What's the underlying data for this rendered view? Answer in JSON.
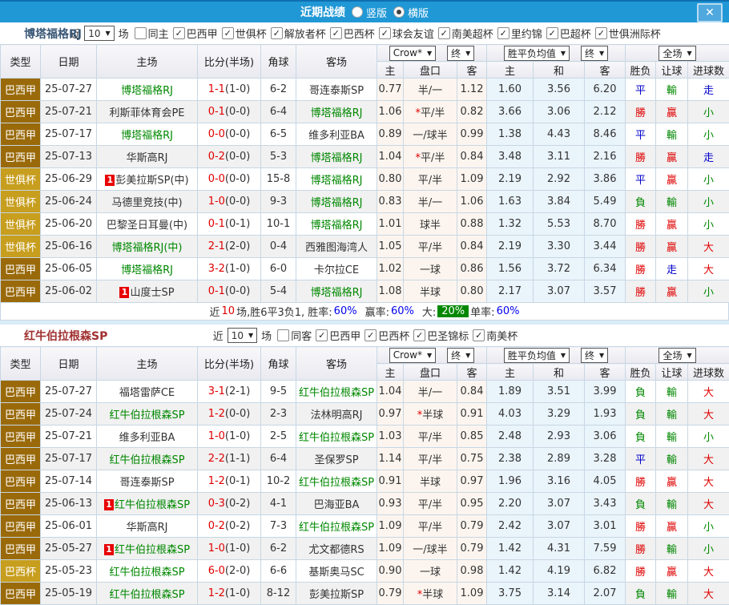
{
  "icons": {
    "close": "✕",
    "check": "✓",
    "arrow_down": "▼"
  },
  "colors": {
    "titlebar_blue": "#2098D6",
    "league_dark_gold": "#9A6A0A",
    "league_light_gold": "#C79E1E",
    "win_red": "#E00000",
    "lose_green": "#008800",
    "draw_blue": "#0000CC",
    "percent_blue": "#0000EE",
    "handicap_bg": "#FCF5EF",
    "avg_bg": "#EAF4FB"
  },
  "titlebar": {
    "title": "近期战绩",
    "vertical_label": "竖版",
    "horizontal_label": "横版",
    "selected": "横版"
  },
  "header": {
    "type": "类型",
    "date": "日期",
    "home": "主场",
    "score": "比分(半场)",
    "corner": "角球",
    "away": "客场",
    "odds_source": "Crow*",
    "final": "终",
    "avg_label": "胜平负均值",
    "scope": "全场",
    "sub_home": "主",
    "sub_handicap": "盘口",
    "sub_away": "客",
    "sub_avg_home": "主",
    "sub_avg_draw": "和",
    "sub_avg_away": "客",
    "sub_wdl": "胜负",
    "sub_let": "让球",
    "sub_goals": "进球数"
  },
  "sections": [
    {
      "team": "博塔福格RJ",
      "filters": {
        "near_label": "近",
        "near_value": "10",
        "games_label": "场",
        "same_label": "同主",
        "same_checked": false,
        "leagues": [
          "巴西甲",
          "世俱杯",
          "解放者杯",
          "巴西杯",
          "球会友谊",
          "南美超杯",
          "里约锦",
          "巴超杯",
          "世俱洲际杯"
        ]
      },
      "rows": [
        {
          "league": "巴西甲",
          "shade": "dark",
          "date": "25-07-27",
          "home": "博塔福格RJ",
          "home_green": true,
          "home_badge": "",
          "score": "1-1",
          "half": "(1-0)",
          "corners": "6-2",
          "away": "哥连泰斯SP",
          "away_green": false,
          "away_badge": "",
          "hc_home": "0.77",
          "hc_line": "半/一",
          "hc_star": false,
          "hc_away": "1.12",
          "avg_home": "1.60",
          "avg_draw": "3.56",
          "avg_away": "6.20",
          "res_wdl": [
            "平",
            "b"
          ],
          "res_let": [
            "輸",
            "g"
          ],
          "res_goal": [
            "走",
            "b"
          ]
        },
        {
          "league": "巴西甲",
          "shade": "dark",
          "date": "25-07-21",
          "home": "利斯菲体育会PE",
          "home_green": false,
          "home_badge": "",
          "score": "0-1",
          "half": "(0-0)",
          "corners": "6-4",
          "away": "博塔福格RJ",
          "away_green": true,
          "away_badge": "",
          "hc_home": "1.06",
          "hc_line": "平/半",
          "hc_star": true,
          "hc_away": "0.82",
          "avg_home": "3.66",
          "avg_draw": "3.06",
          "avg_away": "2.12",
          "res_wdl": [
            "勝",
            "r"
          ],
          "res_let": [
            "贏",
            "r"
          ],
          "res_goal": [
            "小",
            "g"
          ]
        },
        {
          "league": "巴西甲",
          "shade": "dark",
          "date": "25-07-17",
          "home": "博塔福格RJ",
          "home_green": true,
          "home_badge": "",
          "score": "0-0",
          "half": "(0-0)",
          "corners": "6-5",
          "away": "维多利亚BA",
          "away_green": false,
          "away_badge": "",
          "hc_home": "0.89",
          "hc_line": "一/球半",
          "hc_star": false,
          "hc_away": "0.99",
          "avg_home": "1.38",
          "avg_draw": "4.43",
          "avg_away": "8.46",
          "res_wdl": [
            "平",
            "b"
          ],
          "res_let": [
            "輸",
            "g"
          ],
          "res_goal": [
            "小",
            "g"
          ]
        },
        {
          "league": "巴西甲",
          "shade": "dark",
          "date": "25-07-13",
          "home": "华斯高RJ",
          "home_green": false,
          "home_badge": "",
          "score": "0-2",
          "half": "(0-0)",
          "corners": "5-3",
          "away": "博塔福格RJ",
          "away_green": true,
          "away_badge": "",
          "hc_home": "1.04",
          "hc_line": "平/半",
          "hc_star": true,
          "hc_away": "0.84",
          "avg_home": "3.48",
          "avg_draw": "3.11",
          "avg_away": "2.16",
          "res_wdl": [
            "勝",
            "r"
          ],
          "res_let": [
            "贏",
            "r"
          ],
          "res_goal": [
            "走",
            "b"
          ]
        },
        {
          "league": "世俱杯",
          "shade": "light",
          "date": "25-06-29",
          "home": "彭美拉斯SP(中)",
          "home_green": false,
          "home_badge": "1",
          "score": "0-0",
          "half": "(0-0)",
          "corners": "15-8",
          "away": "博塔福格RJ",
          "away_green": true,
          "away_badge": "",
          "hc_home": "0.80",
          "hc_line": "平/半",
          "hc_star": false,
          "hc_away": "1.09",
          "avg_home": "2.19",
          "avg_draw": "2.92",
          "avg_away": "3.86",
          "res_wdl": [
            "平",
            "b"
          ],
          "res_let": [
            "贏",
            "r"
          ],
          "res_goal": [
            "小",
            "g"
          ]
        },
        {
          "league": "世俱杯",
          "shade": "light",
          "date": "25-06-24",
          "home": "马德里竞技(中)",
          "home_green": false,
          "home_badge": "",
          "score": "1-0",
          "half": "(0-0)",
          "corners": "9-3",
          "away": "博塔福格RJ",
          "away_green": true,
          "away_badge": "",
          "hc_home": "0.83",
          "hc_line": "半/一",
          "hc_star": false,
          "hc_away": "1.06",
          "avg_home": "1.63",
          "avg_draw": "3.84",
          "avg_away": "5.49",
          "res_wdl": [
            "負",
            "g"
          ],
          "res_let": [
            "輸",
            "g"
          ],
          "res_goal": [
            "小",
            "g"
          ]
        },
        {
          "league": "世俱杯",
          "shade": "light",
          "date": "25-06-20",
          "home": "巴黎圣日耳曼(中)",
          "home_green": false,
          "home_badge": "",
          "score": "0-1",
          "half": "(0-1)",
          "corners": "10-1",
          "away": "博塔福格RJ",
          "away_green": true,
          "away_badge": "",
          "hc_home": "1.01",
          "hc_line": "球半",
          "hc_star": false,
          "hc_away": "0.88",
          "avg_home": "1.32",
          "avg_draw": "5.53",
          "avg_away": "8.70",
          "res_wdl": [
            "勝",
            "r"
          ],
          "res_let": [
            "贏",
            "r"
          ],
          "res_goal": [
            "小",
            "g"
          ]
        },
        {
          "league": "世俱杯",
          "shade": "light",
          "date": "25-06-16",
          "home": "博塔福格RJ(中)",
          "home_green": true,
          "home_badge": "",
          "score": "2-1",
          "half": "(2-0)",
          "corners": "0-4",
          "away": "西雅图海湾人",
          "away_green": false,
          "away_badge": "",
          "hc_home": "1.05",
          "hc_line": "平/半",
          "hc_star": false,
          "hc_away": "0.84",
          "avg_home": "2.19",
          "avg_draw": "3.30",
          "avg_away": "3.44",
          "res_wdl": [
            "勝",
            "r"
          ],
          "res_let": [
            "贏",
            "r"
          ],
          "res_goal": [
            "大",
            "r"
          ]
        },
        {
          "league": "巴西甲",
          "shade": "dark",
          "date": "25-06-05",
          "home": "博塔福格RJ",
          "home_green": true,
          "home_badge": "",
          "score": "3-2",
          "half": "(1-0)",
          "corners": "6-0",
          "away": "卡尔拉CE",
          "away_green": false,
          "away_badge": "",
          "hc_home": "1.02",
          "hc_line": "一球",
          "hc_star": false,
          "hc_away": "0.86",
          "avg_home": "1.56",
          "avg_draw": "3.72",
          "avg_away": "6.34",
          "res_wdl": [
            "勝",
            "r"
          ],
          "res_let": [
            "走",
            "b"
          ],
          "res_goal": [
            "大",
            "r"
          ]
        },
        {
          "league": "巴西甲",
          "shade": "dark",
          "date": "25-06-02",
          "home": "山度士SP",
          "home_green": false,
          "home_badge": "1",
          "score": "0-1",
          "half": "(0-0)",
          "corners": "5-4",
          "away": "博塔福格RJ",
          "away_green": true,
          "away_badge": "",
          "hc_home": "1.08",
          "hc_line": "半球",
          "hc_star": false,
          "hc_away": "0.80",
          "avg_home": "2.17",
          "avg_draw": "3.07",
          "avg_away": "3.57",
          "res_wdl": [
            "勝",
            "r"
          ],
          "res_let": [
            "贏",
            "r"
          ],
          "res_goal": [
            "小",
            "g"
          ]
        }
      ],
      "summary": {
        "prefix": "近",
        "count": "10",
        "mid": "场,胜6平3负1, 胜率:",
        "win_rate": "60%",
        "odds_label": "赢率:",
        "odds_rate": "60%",
        "big_label": "大:",
        "big_rate": "20%",
        "single_label": "单率:",
        "single_rate": "60%"
      }
    },
    {
      "team": "红牛伯拉根森SP",
      "filters": {
        "near_label": "近",
        "near_value": "10",
        "games_label": "场",
        "same_label": "同客",
        "same_checked": false,
        "leagues": [
          "巴西甲",
          "巴西杯",
          "巴圣锦标",
          "南美杯"
        ]
      },
      "rows": [
        {
          "league": "巴西甲",
          "shade": "dark",
          "date": "25-07-27",
          "home": "福塔雷萨CE",
          "home_green": false,
          "home_badge": "",
          "score": "3-1",
          "half": "(2-1)",
          "corners": "9-5",
          "away": "红牛伯拉根森SP",
          "away_green": true,
          "away_badge": "",
          "hc_home": "1.04",
          "hc_line": "半/一",
          "hc_star": false,
          "hc_away": "0.84",
          "avg_home": "1.89",
          "avg_draw": "3.51",
          "avg_away": "3.99",
          "res_wdl": [
            "負",
            "g"
          ],
          "res_let": [
            "輸",
            "g"
          ],
          "res_goal": [
            "大",
            "r"
          ]
        },
        {
          "league": "巴西甲",
          "shade": "dark",
          "date": "25-07-24",
          "home": "红牛伯拉根森SP",
          "home_green": true,
          "home_badge": "",
          "score": "1-2",
          "half": "(0-0)",
          "corners": "2-3",
          "away": "法林明高RJ",
          "away_green": false,
          "away_badge": "",
          "hc_home": "0.97",
          "hc_line": "半球",
          "hc_star": true,
          "hc_away": "0.91",
          "avg_home": "4.03",
          "avg_draw": "3.29",
          "avg_away": "1.93",
          "res_wdl": [
            "負",
            "g"
          ],
          "res_let": [
            "輸",
            "g"
          ],
          "res_goal": [
            "大",
            "r"
          ]
        },
        {
          "league": "巴西甲",
          "shade": "dark",
          "date": "25-07-21",
          "home": "维多利亚BA",
          "home_green": false,
          "home_badge": "",
          "score": "1-0",
          "half": "(1-0)",
          "corners": "2-5",
          "away": "红牛伯拉根森SP",
          "away_green": true,
          "away_badge": "",
          "hc_home": "1.03",
          "hc_line": "平/半",
          "hc_star": false,
          "hc_away": "0.85",
          "avg_home": "2.48",
          "avg_draw": "2.93",
          "avg_away": "3.06",
          "res_wdl": [
            "負",
            "g"
          ],
          "res_let": [
            "輸",
            "g"
          ],
          "res_goal": [
            "小",
            "g"
          ]
        },
        {
          "league": "巴西甲",
          "shade": "dark",
          "date": "25-07-17",
          "home": "红牛伯拉根森SP",
          "home_green": true,
          "home_badge": "",
          "score": "2-2",
          "half": "(1-1)",
          "corners": "6-4",
          "away": "圣保罗SP",
          "away_green": false,
          "away_badge": "",
          "hc_home": "1.14",
          "hc_line": "平/半",
          "hc_star": false,
          "hc_away": "0.75",
          "avg_home": "2.38",
          "avg_draw": "2.89",
          "avg_away": "3.28",
          "res_wdl": [
            "平",
            "b"
          ],
          "res_let": [
            "輸",
            "g"
          ],
          "res_goal": [
            "大",
            "r"
          ]
        },
        {
          "league": "巴西甲",
          "shade": "dark",
          "date": "25-07-14",
          "home": "哥连泰斯SP",
          "home_green": false,
          "home_badge": "",
          "score": "1-2",
          "half": "(0-1)",
          "corners": "10-2",
          "away": "红牛伯拉根森SP",
          "away_green": true,
          "away_badge": "",
          "hc_home": "0.91",
          "hc_line": "半球",
          "hc_star": false,
          "hc_away": "0.97",
          "avg_home": "1.96",
          "avg_draw": "3.16",
          "avg_away": "4.05",
          "res_wdl": [
            "勝",
            "r"
          ],
          "res_let": [
            "贏",
            "r"
          ],
          "res_goal": [
            "大",
            "r"
          ]
        },
        {
          "league": "巴西甲",
          "shade": "dark",
          "date": "25-06-13",
          "home": "红牛伯拉根森SP",
          "home_green": true,
          "home_badge": "1",
          "score": "0-3",
          "half": "(0-2)",
          "corners": "4-1",
          "away": "巴海亚BA",
          "away_green": false,
          "away_badge": "",
          "hc_home": "0.93",
          "hc_line": "平/半",
          "hc_star": false,
          "hc_away": "0.95",
          "avg_home": "2.20",
          "avg_draw": "3.07",
          "avg_away": "3.43",
          "res_wdl": [
            "負",
            "g"
          ],
          "res_let": [
            "輸",
            "g"
          ],
          "res_goal": [
            "大",
            "r"
          ]
        },
        {
          "league": "巴西甲",
          "shade": "dark",
          "date": "25-06-01",
          "home": "华斯高RJ",
          "home_green": false,
          "home_badge": "",
          "score": "0-2",
          "half": "(0-2)",
          "corners": "7-3",
          "away": "红牛伯拉根森SP",
          "away_green": true,
          "away_badge": "",
          "hc_home": "1.09",
          "hc_line": "平/半",
          "hc_star": false,
          "hc_away": "0.79",
          "avg_home": "2.42",
          "avg_draw": "3.07",
          "avg_away": "3.01",
          "res_wdl": [
            "勝",
            "r"
          ],
          "res_let": [
            "贏",
            "r"
          ],
          "res_goal": [
            "小",
            "g"
          ]
        },
        {
          "league": "巴西甲",
          "shade": "dark",
          "date": "25-05-27",
          "home": "红牛伯拉根森SP",
          "home_green": true,
          "home_badge": "1",
          "score": "1-0",
          "half": "(1-0)",
          "corners": "6-2",
          "away": "尤文都德RS",
          "away_green": false,
          "away_badge": "",
          "hc_home": "1.09",
          "hc_line": "一/球半",
          "hc_star": false,
          "hc_away": "0.79",
          "avg_home": "1.42",
          "avg_draw": "4.31",
          "avg_away": "7.59",
          "res_wdl": [
            "勝",
            "r"
          ],
          "res_let": [
            "輸",
            "g"
          ],
          "res_goal": [
            "小",
            "g"
          ]
        },
        {
          "league": "巴西杯",
          "shade": "light",
          "date": "25-05-23",
          "home": "红牛伯拉根森SP",
          "home_green": true,
          "home_badge": "",
          "score": "6-0",
          "half": "(2-0)",
          "corners": "6-6",
          "away": "基斯奥马SC",
          "away_green": false,
          "away_badge": "",
          "hc_home": "0.90",
          "hc_line": "一球",
          "hc_star": false,
          "hc_away": "0.98",
          "avg_home": "1.42",
          "avg_draw": "4.19",
          "avg_away": "6.82",
          "res_wdl": [
            "勝",
            "r"
          ],
          "res_let": [
            "贏",
            "r"
          ],
          "res_goal": [
            "大",
            "r"
          ]
        },
        {
          "league": "巴西甲",
          "shade": "dark",
          "date": "25-05-19",
          "home": "红牛伯拉根森SP",
          "home_green": true,
          "home_badge": "",
          "score": "1-2",
          "half": "(1-0)",
          "corners": "8-12",
          "away": "彭美拉斯SP",
          "away_green": false,
          "away_badge": "",
          "hc_home": "0.79",
          "hc_line": "半球",
          "hc_star": true,
          "hc_away": "1.09",
          "avg_home": "3.75",
          "avg_draw": "3.14",
          "avg_away": "2.07",
          "res_wdl": [
            "負",
            "g"
          ],
          "res_let": [
            "輸",
            "g"
          ],
          "res_goal": [
            "大",
            "r"
          ]
        }
      ]
    }
  ]
}
